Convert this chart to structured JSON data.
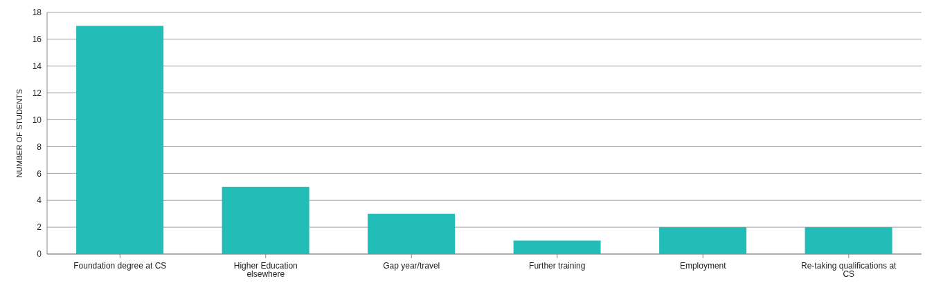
{
  "chart_data": {
    "type": "bar",
    "ylabel": "NUMBER OF STUDENTS",
    "categories": [
      "Foundation degree at CS",
      "Higher Education elsewhere",
      "Gap year/travel",
      "Further training",
      "Employment",
      "Re-taking qualifications at CS"
    ],
    "values": [
      17,
      5,
      3,
      1,
      2,
      2
    ],
    "color": "#23bdb8",
    "ylim": [
      0,
      18
    ],
    "yticks": [
      0,
      2,
      4,
      6,
      8,
      10,
      12,
      14,
      16,
      18
    ],
    "grid": "y"
  }
}
